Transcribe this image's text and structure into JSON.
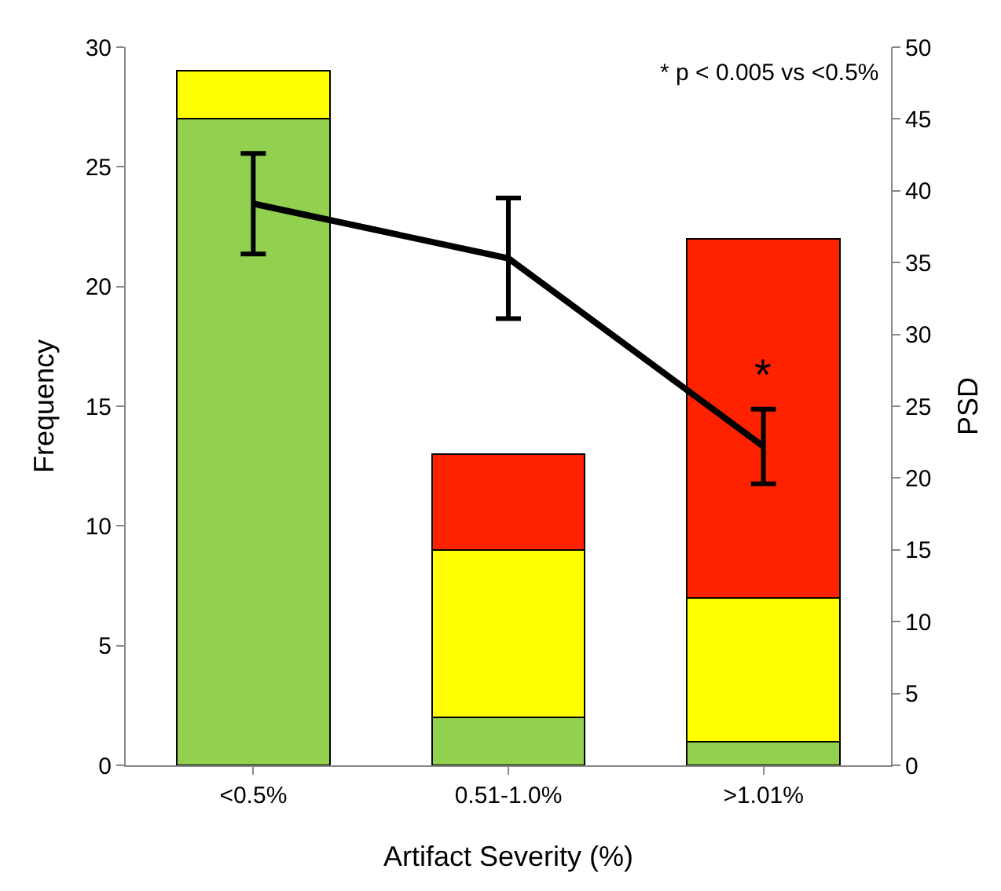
{
  "chart_data": {
    "type": "bar",
    "stacked": true,
    "xlabel": "Artifact Severity (%)",
    "ylabel": "Frequency",
    "y2label": "PSD",
    "categories": [
      "<0.5%",
      "0.51-1.0%",
      ">1.01%"
    ],
    "series": [
      {
        "color": "#92d050",
        "values": [
          27,
          2,
          1
        ]
      },
      {
        "color": "#ffff00",
        "values": [
          2,
          7,
          6
        ]
      },
      {
        "color": "#ff2200",
        "values": [
          null,
          4,
          15
        ]
      },
      {
        "type": "line",
        "axis": "y2",
        "color": "#000000",
        "values": [
          39.1,
          35.3,
          22.2
        ],
        "errors": [
          3.5,
          4.2,
          2.6
        ],
        "marker": "none",
        "line_style": "solid"
      }
    ],
    "ylim": [
      0,
      30
    ],
    "yticks": [
      0,
      5,
      10,
      15,
      20,
      25,
      30
    ],
    "y2lim": [
      0,
      50
    ],
    "y2ticks": [
      0,
      5,
      10,
      15,
      20,
      25,
      30,
      35,
      40,
      45,
      50
    ],
    "grid": false,
    "annotations": [
      "* p < 0.005 vs <0.5%",
      "*"
    ]
  }
}
